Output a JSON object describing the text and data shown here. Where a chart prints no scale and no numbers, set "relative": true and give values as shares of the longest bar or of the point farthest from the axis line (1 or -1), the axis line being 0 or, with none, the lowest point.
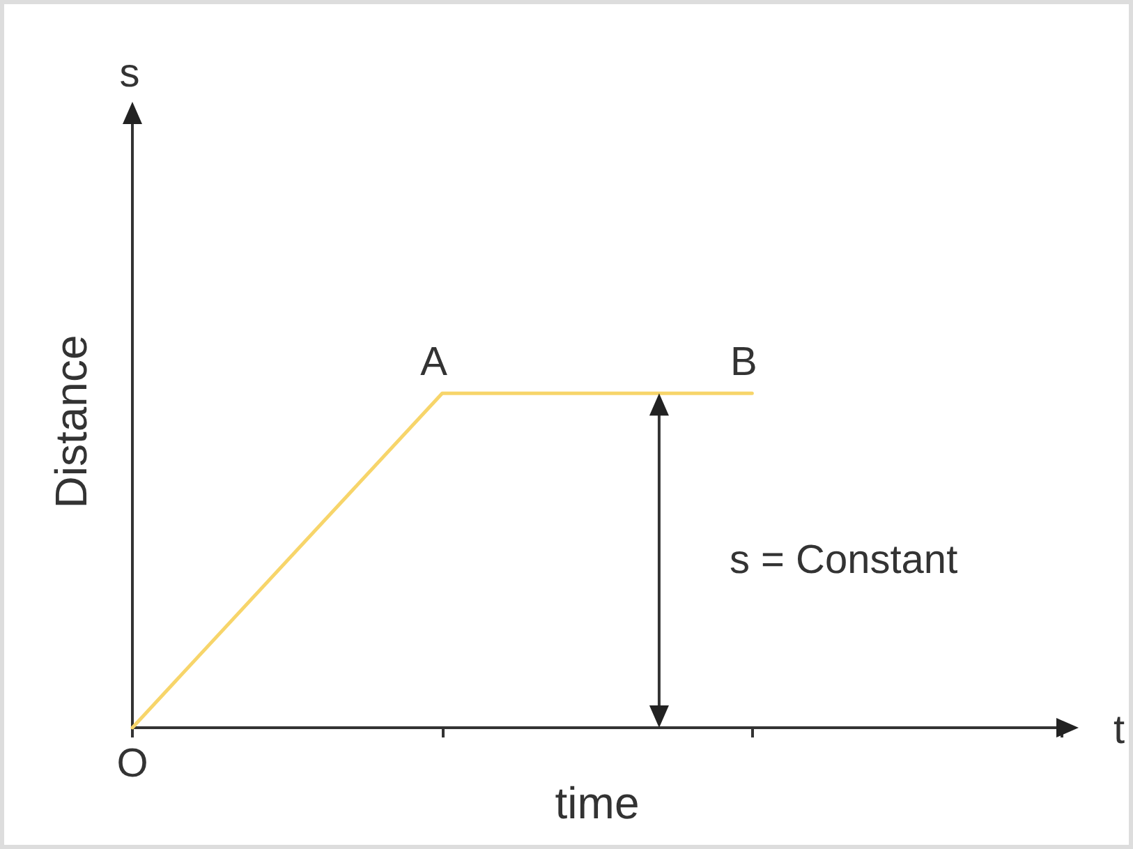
{
  "chart_data": {
    "type": "line",
    "relative": true,
    "xlabel": "time",
    "ylabel": "Distance",
    "categories": [
      null,
      null,
      null,
      null
    ],
    "series": [
      {
        "color": "#f7d56a",
        "values": [
          0,
          1,
          1,
          null
        ]
      }
    ],
    "annotations": [
      "O",
      "A",
      "B",
      "s",
      "t",
      "s = Constant"
    ],
    "marker": "none",
    "line_style": "solid",
    "grid": false
  }
}
